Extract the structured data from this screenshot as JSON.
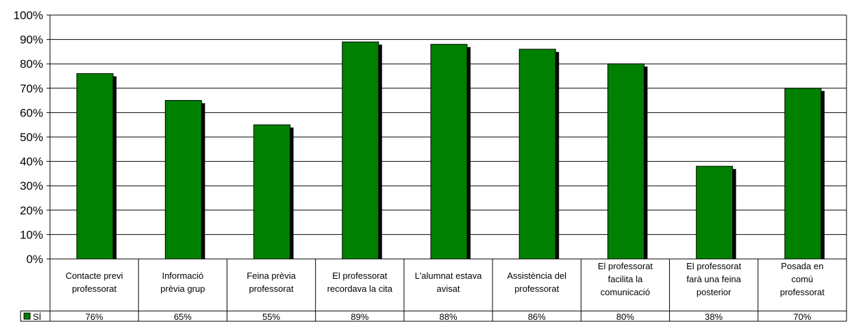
{
  "chart_data": {
    "type": "bar",
    "categories": [
      [
        "Contacte previ",
        "professorat"
      ],
      [
        "Informació",
        "prèvia grup"
      ],
      [
        "Feina prèvia",
        "professorat"
      ],
      [
        "El professorat",
        "recordava la cita"
      ],
      [
        "L'alumnat estava",
        "avisat"
      ],
      [
        "Assistència del",
        "professorat"
      ],
      [
        "El professorat",
        "facilita la",
        "comunicació"
      ],
      [
        "El professorat",
        "farà una feina",
        "posterior"
      ],
      [
        "Posada en",
        "comú",
        "professorat"
      ]
    ],
    "series": [
      {
        "name": "SÍ",
        "values": [
          76,
          65,
          55,
          89,
          88,
          86,
          80,
          38,
          70
        ],
        "labels": [
          "76%",
          "65%",
          "55%",
          "89%",
          "88%",
          "86%",
          "80%",
          "38%",
          "70%"
        ]
      }
    ],
    "ylim": [
      0,
      100
    ],
    "yticks": [
      "0%",
      "10%",
      "20%",
      "30%",
      "40%",
      "50%",
      "60%",
      "70%",
      "80%",
      "90%",
      "100%"
    ],
    "grid": true,
    "legend": "data-table-left",
    "colors": {
      "bar": "#008000",
      "shadow": "#000000",
      "grid": "#000000"
    }
  }
}
